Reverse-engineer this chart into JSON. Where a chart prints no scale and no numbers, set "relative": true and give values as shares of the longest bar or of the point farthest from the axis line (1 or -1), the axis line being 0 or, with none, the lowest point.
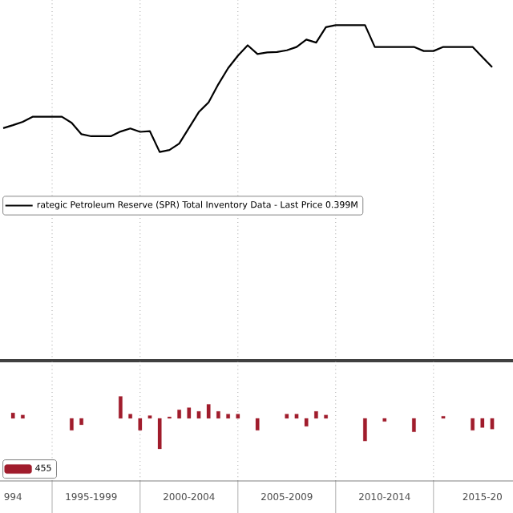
{
  "chart_data": [
    {
      "type": "line",
      "relative": true,
      "grid": "x",
      "legend": "left",
      "categories": [
        null,
        null,
        null,
        null,
        null,
        null,
        null,
        null,
        null,
        null,
        null,
        null,
        null,
        null,
        null,
        null,
        null,
        null,
        null,
        null,
        null,
        null,
        null,
        null,
        null,
        null,
        null,
        null,
        null,
        null,
        null,
        null,
        null,
        null,
        null,
        null,
        null,
        null,
        null,
        null,
        null,
        null,
        null,
        null,
        null,
        null,
        null,
        null,
        null,
        null,
        null
      ],
      "series": [
        {
          "name": "rategic Petroleum Reserve (SPR) Total Inventory Data - Last Price 0.399M",
          "color": "#000000",
          "values": [
            0.693,
            0.702,
            0.712,
            0.727,
            0.727,
            0.727,
            0.727,
            0.709,
            0.675,
            0.669,
            0.669,
            0.669,
            0.683,
            0.692,
            0.682,
            0.684,
            0.622,
            0.628,
            0.647,
            0.694,
            0.741,
            0.77,
            0.824,
            0.872,
            0.909,
            0.94,
            0.914,
            0.919,
            0.92,
            0.925,
            0.935,
            0.957,
            0.948,
            0.994,
            1.0,
            1.0,
            1.0,
            1.0,
            0.935,
            0.935,
            0.935,
            0.935,
            0.935,
            0.923,
            0.923,
            0.935,
            0.935,
            0.935,
            0.935,
            0.905,
            0.875
          ]
        }
      ]
    },
    {
      "type": "bar",
      "relative": true,
      "grid": "x",
      "legend": "bottom left",
      "tick_labels": "x",
      "categories": [
        null,
        "994",
        null,
        null,
        null,
        null,
        null,
        null,
        null,
        "1995-1999",
        null,
        null,
        null,
        null,
        null,
        null,
        null,
        null,
        null,
        "2000-2004",
        null,
        null,
        null,
        null,
        null,
        null,
        null,
        null,
        null,
        "2005-2009",
        null,
        null,
        null,
        null,
        null,
        null,
        null,
        null,
        null,
        "2010-2014",
        null,
        null,
        null,
        null,
        null,
        null,
        null,
        null,
        null,
        "2015-20",
        null
      ],
      "series": [
        {
          "name": "455",
          "color": "#a01c2c",
          "values": [
            null,
            0.18,
            0.11,
            null,
            null,
            null,
            null,
            -0.39,
            -0.21,
            null,
            null,
            null,
            0.72,
            0.14,
            -0.39,
            0.09,
            -1.0,
            0.05,
            0.28,
            0.35,
            0.23,
            0.46,
            0.23,
            0.14,
            0.14,
            null,
            -0.39,
            null,
            null,
            0.14,
            0.14,
            -0.26,
            0.23,
            0.11,
            null,
            null,
            null,
            -0.74,
            null,
            -0.1,
            null,
            null,
            -0.44,
            null,
            null,
            0.07,
            null,
            null,
            -0.39,
            -0.3,
            -0.35
          ]
        }
      ]
    }
  ]
}
